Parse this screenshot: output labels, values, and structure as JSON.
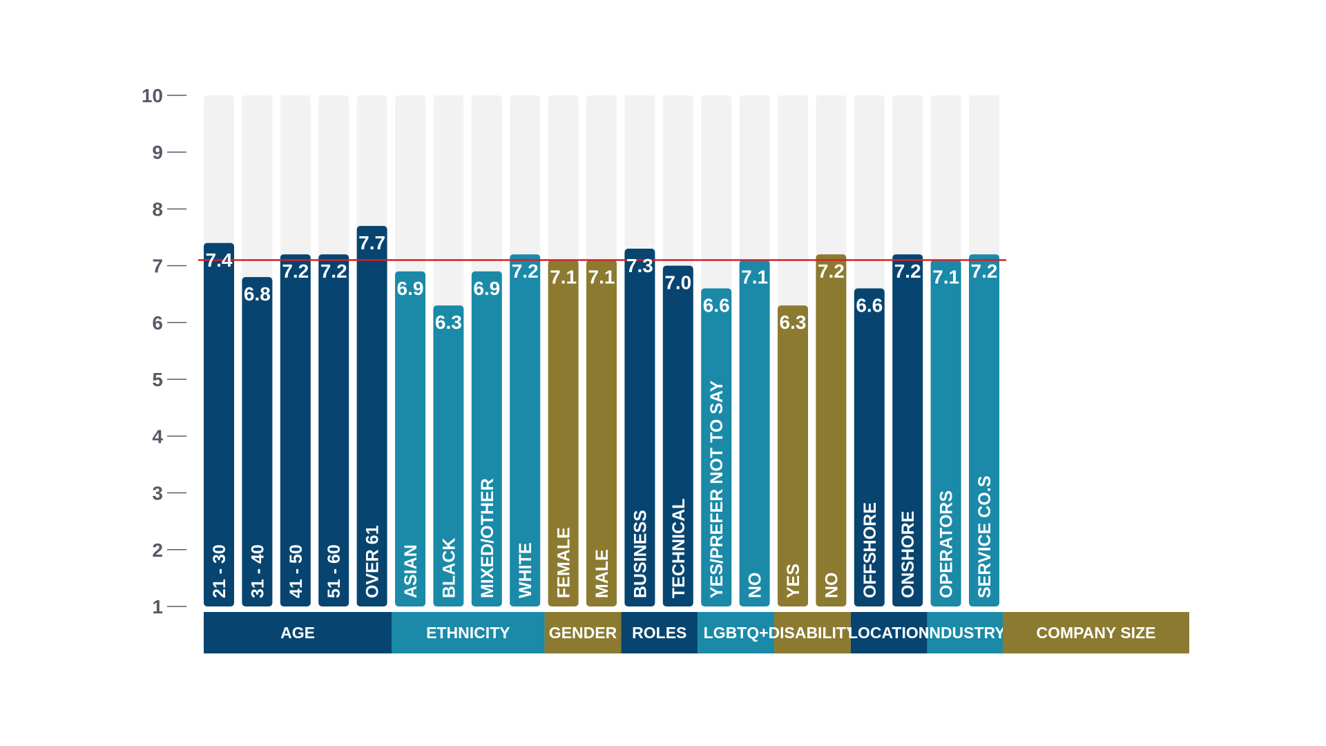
{
  "chart_data": {
    "type": "bar",
    "title": "",
    "xlabel": "",
    "ylabel": "",
    "ylim": [
      1,
      10
    ],
    "yticks": [
      1,
      2,
      3,
      4,
      5,
      6,
      7,
      8,
      9,
      10
    ],
    "reference_line": {
      "value": 7.1,
      "color": "#d42028"
    },
    "background_bar_color": "#f2f2f2",
    "colors": {
      "navy": "#074570",
      "teal": "#1a8aa8",
      "gold": "#8c7a30"
    },
    "categories": [
      "21 - 30",
      "31 - 40",
      "41 - 50",
      "51 - 60",
      "OVER 61",
      "ASIAN",
      "BLACK",
      "MIXED/OTHER",
      "WHITE",
      "FEMALE",
      "MALE",
      "BUSINESS",
      "TECHNICAL",
      "YES/PREFER NOT TO SAY",
      "NO",
      "YES",
      "NO",
      "OFFSHORE",
      "ONSHORE",
      "OPERATORS",
      "SERVICE CO.S"
    ],
    "values": [
      7.4,
      6.8,
      7.2,
      7.2,
      7.7,
      6.9,
      6.3,
      6.9,
      7.2,
      7.1,
      7.1,
      7.3,
      7.0,
      6.6,
      7.1,
      6.3,
      7.2,
      6.6,
      7.2,
      7.1,
      7.2
    ],
    "value_labels": [
      "7.4",
      "6.8",
      "7.2",
      "7.2",
      "7.7",
      "6.9",
      "6.3",
      "6.9",
      "7.2",
      "7.1",
      "7.1",
      "7.3",
      "7.0",
      "6.6",
      "7.1",
      "6.3",
      "7.2",
      "6.6",
      "7.2",
      "7.1",
      "7.2"
    ],
    "bar_colors": [
      "navy",
      "navy",
      "navy",
      "navy",
      "navy",
      "teal",
      "teal",
      "teal",
      "teal",
      "gold",
      "gold",
      "navy",
      "navy",
      "teal",
      "teal",
      "gold",
      "gold",
      "navy",
      "navy",
      "teal",
      "teal"
    ],
    "groups": [
      {
        "name": "AGE",
        "color": "navy",
        "count": 5
      },
      {
        "name": "ETHNICITY",
        "color": "teal",
        "count": 4
      },
      {
        "name": "GENDER",
        "color": "gold",
        "count": 2
      },
      {
        "name": "ROLES",
        "color": "navy",
        "count": 2
      },
      {
        "name": "LGBTQ+",
        "color": "teal",
        "count": 2
      },
      {
        "name": "DISABILITY",
        "color": "gold",
        "count": 2
      },
      {
        "name": "LOCATION",
        "color": "navy",
        "count": 2
      },
      {
        "name": "INDUSTRY",
        "color": "teal",
        "count": 2
      },
      {
        "name": "COMPANY SIZE",
        "color": "gold",
        "count": 0
      }
    ]
  }
}
